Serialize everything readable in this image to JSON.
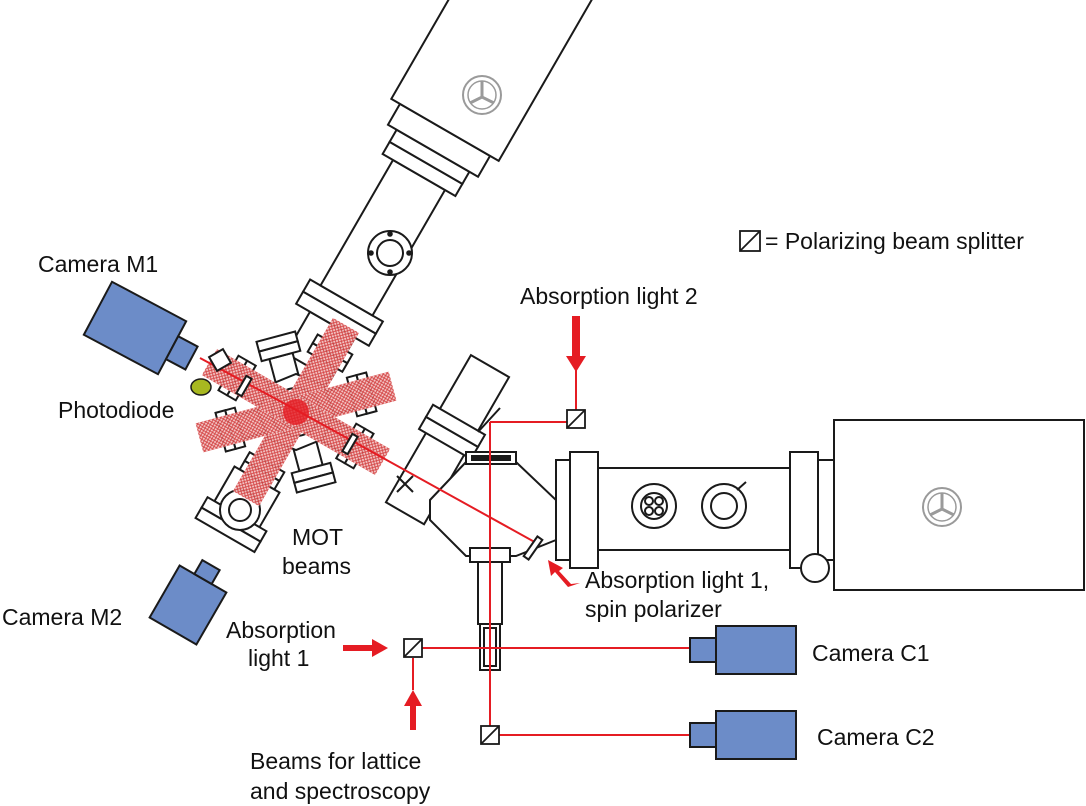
{
  "legend": {
    "text": "= Polarizing beam splitter"
  },
  "labels": {
    "camera_m1": "Camera M1",
    "camera_m2": "Camera M2",
    "photodiode": "Photodiode",
    "mot_beams": [
      "MOT",
      "beams"
    ],
    "absorption_light_2": "Absorption light 2",
    "absorption_light_1_spin": [
      "Absorption light 1,",
      "spin polarizer"
    ],
    "absorption_light_1": [
      "Absorption",
      "light 1"
    ],
    "beams_lattice": [
      "Beams for lattice",
      "and spectroscopy"
    ],
    "camera_c1": "Camera C1",
    "camera_c2": "Camera C2"
  },
  "colors": {
    "camera": "#6c8cc8",
    "laser": "#e51c23",
    "photodiode": "#a8b820",
    "outline": "#1a1a1a",
    "pump_icon": "#9a9a9a"
  },
  "icons": [
    "pump-icon",
    "polarizing-beam-splitter-icon",
    "arrow-icon"
  ]
}
